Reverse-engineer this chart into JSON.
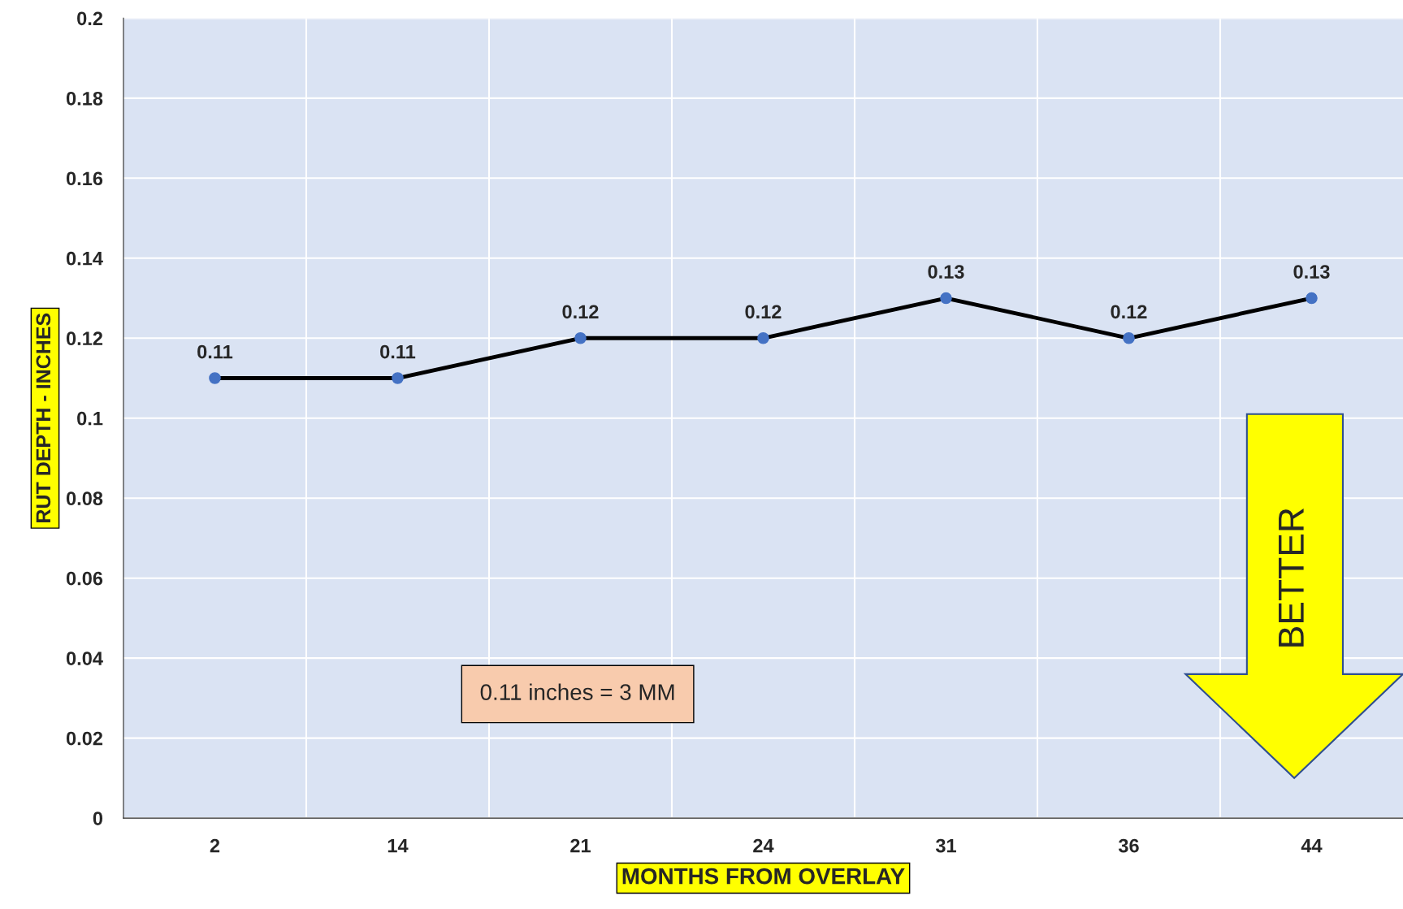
{
  "chart_data": {
    "type": "line",
    "xlabel": "MONTHS FROM OVERLAY",
    "ylabel": "RUT DEPTH - INCHES",
    "categories": [
      "2",
      "14",
      "21",
      "24",
      "31",
      "36",
      "44"
    ],
    "series": [
      {
        "color": "#000000",
        "colors": [
          "#4472c4",
          "#4472c4",
          "#4472c4",
          "#4472c4",
          "#4472c4",
          "#4472c4",
          "#4472c4"
        ],
        "values": [
          0.11,
          0.11,
          0.12,
          0.12,
          0.13,
          0.12,
          0.13
        ]
      }
    ],
    "ylim": [
      0,
      0.2
    ],
    "yticks": [
      0,
      0.02,
      0.04,
      0.06,
      0.08,
      0.1,
      0.12,
      0.14,
      0.16,
      0.18,
      0.2
    ],
    "data_labels": true,
    "grid": true,
    "marker": "circle",
    "line_style": "solid",
    "annotations": [
      "0.11 inches = 3 MM",
      "BETTER"
    ]
  }
}
